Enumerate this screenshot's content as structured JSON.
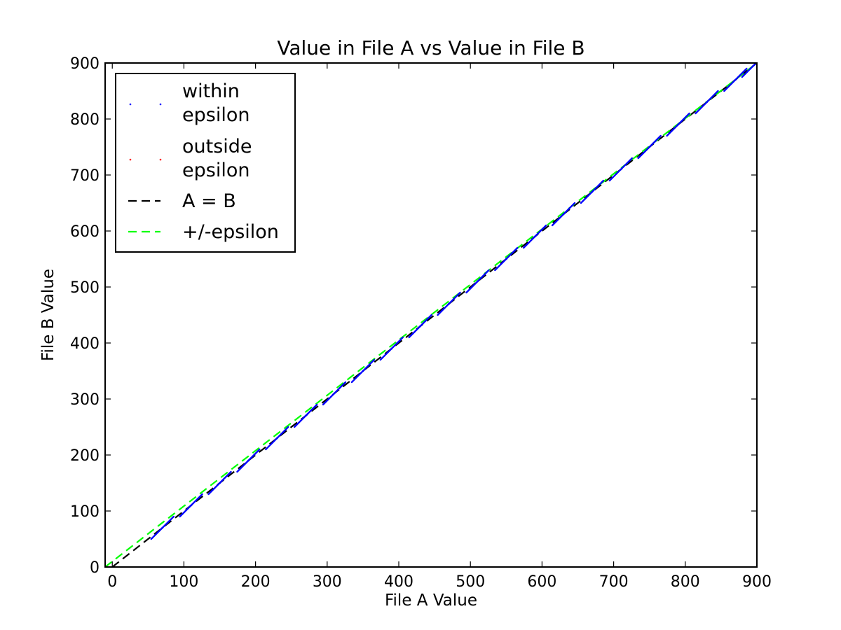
{
  "chart_data": {
    "type": "scatter",
    "title": "Value in File A vs Value in File B",
    "xlabel": "File A Value",
    "ylabel": "File B Value",
    "xlim": [
      -10,
      900
    ],
    "ylim": [
      0,
      900
    ],
    "xticks": [
      0,
      100,
      200,
      300,
      400,
      500,
      600,
      700,
      800,
      900
    ],
    "yticks": [
      0,
      100,
      200,
      300,
      400,
      500,
      600,
      700,
      800,
      900
    ],
    "grid": false,
    "legend_position": "upper-left",
    "series": [
      {
        "name": "within epsilon",
        "kind": "points",
        "color": "#0000ff",
        "x": [
          70,
          110,
          150,
          190,
          230,
          270,
          310,
          350,
          390,
          430,
          470,
          510,
          550,
          590,
          630,
          670,
          710,
          750,
          790,
          830,
          870,
          895
        ],
        "y": [
          70,
          110,
          150,
          190,
          230,
          270,
          310,
          350,
          390,
          430,
          470,
          510,
          550,
          590,
          630,
          670,
          710,
          750,
          790,
          830,
          870,
          895
        ]
      },
      {
        "name": "outside epsilon",
        "kind": "points",
        "color": "#ff0000",
        "x": [],
        "y": []
      },
      {
        "name": "A = B",
        "kind": "dashed-line",
        "color": "#000000",
        "x": [
          0,
          900
        ],
        "y": [
          0,
          900
        ]
      },
      {
        "name": "+/-epsilon",
        "kind": "dashed-line",
        "color": "#00ff00",
        "x": [
          -10,
          900
        ],
        "y": [
          0,
          900
        ]
      }
    ]
  }
}
